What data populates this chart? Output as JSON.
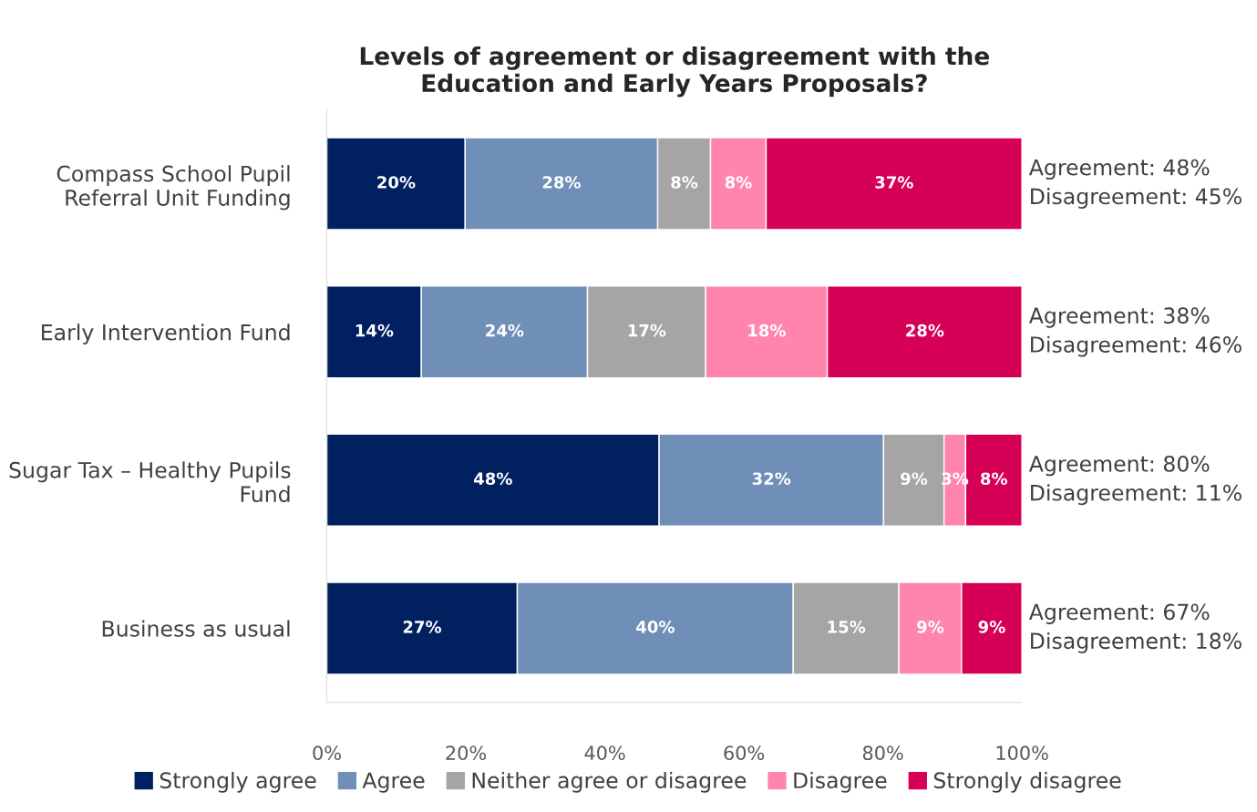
{
  "chart_data": {
    "type": "bar",
    "orientation": "horizontal",
    "stacked": true,
    "title": "Levels of agreement or disagreement with the\nEducation and Early Years Proposals?",
    "categories": [
      "Compass School Pupil\nReferral Unit Funding",
      "Early Intervention Fund",
      "Sugar Tax – Healthy Pupils\nFund",
      "Business as usual"
    ],
    "series": [
      {
        "name": "Strongly agree",
        "color": "#002060",
        "values": [
          19.9,
          13.6,
          47.8,
          27.4
        ],
        "value_labels": [
          "20%",
          "14%",
          "48%",
          "27%"
        ]
      },
      {
        "name": "Agree",
        "color": "#6f8fb8",
        "values": [
          27.7,
          23.9,
          32.3,
          39.7
        ],
        "value_labels": [
          "28%",
          "24%",
          "32%",
          "40%"
        ]
      },
      {
        "name": "Neither agree or disagree",
        "color": "#a5a5a5",
        "values": [
          7.6,
          17.0,
          8.7,
          15.2
        ],
        "value_labels": [
          "8%",
          "17%",
          "9%",
          "15%"
        ]
      },
      {
        "name": "Disagree",
        "color": "#ff85ad",
        "values": [
          8.0,
          17.5,
          3.1,
          9.0
        ],
        "value_labels": [
          "8%",
          "18%",
          "3%",
          "9%"
        ]
      },
      {
        "name": "Strongly disagree",
        "color": "#d60057",
        "values": [
          36.8,
          28.0,
          8.1,
          8.7
        ],
        "value_labels": [
          "37%",
          "28%",
          "8%",
          "9%"
        ]
      }
    ],
    "xlim": [
      0,
      100
    ],
    "xticks": [
      {
        "value": 0,
        "label": "0%"
      },
      {
        "value": 20,
        "label": "20%"
      },
      {
        "value": 40,
        "label": "40%"
      },
      {
        "value": 60,
        "label": "60%"
      },
      {
        "value": 80,
        "label": "80%"
      },
      {
        "value": 100,
        "label": "100%"
      }
    ],
    "annotations": [
      "Agreement: 48%\nDisagreement: 45%",
      "Agreement: 38%\nDisagreement: 46%",
      "Agreement: 80%\nDisagreement: 11%",
      "Agreement: 67%\nDisagreement: 18%"
    ],
    "legend": "bottom",
    "grid": false
  }
}
